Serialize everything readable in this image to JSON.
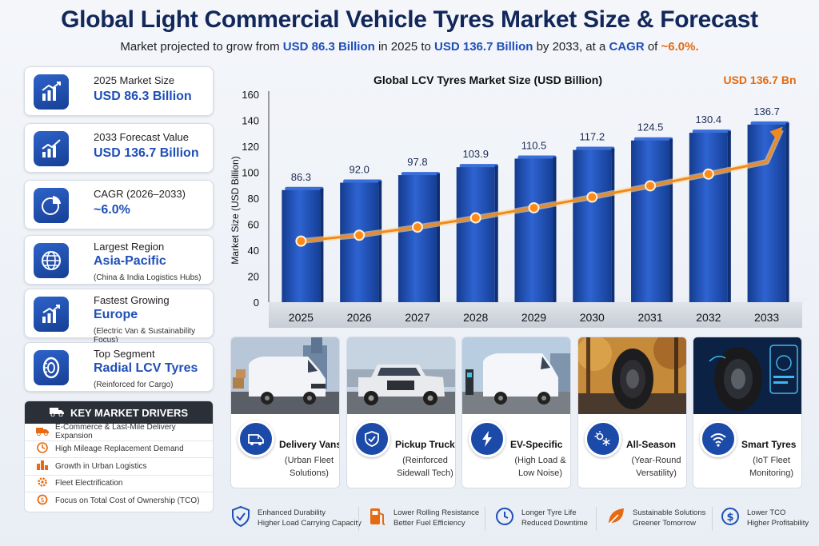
{
  "header": {
    "title": "Global Light Commercial Vehicle Tyres Market Size & Forecast",
    "subtitle_pre": "Market projected to grow from ",
    "subtitle_v1": "USD 86.3 Billion",
    "subtitle_mid": " in 2025 to ",
    "subtitle_v2": "USD 136.7 Billion",
    "subtitle_mid2": " by 2033, at a ",
    "subtitle_cagr_label": "CAGR",
    "subtitle_of": " of ",
    "subtitle_cagr_value": "~6.0%."
  },
  "stats": [
    {
      "label": "2025 Market Size",
      "value": "USD 86.3 Billion",
      "note": "",
      "icon": "bar-chart-icon"
    },
    {
      "label": "2033 Forecast Value",
      "value": "USD 136.7 Billion",
      "note": "",
      "icon": "trend-chart-icon"
    },
    {
      "label": "CAGR (2026–2033)",
      "value": "~6.0%",
      "note": "",
      "icon": "pie-chart-icon"
    },
    {
      "label": "Largest Region",
      "value": "Asia-Pacific",
      "note": "(China & India Logistics Hubs)",
      "icon": "globe-icon"
    },
    {
      "label": "Fastest Growing",
      "value": "Europe",
      "note": "(Electric Van & Sustainability Focus)",
      "icon": "growth-icon"
    },
    {
      "label": "Top Segment",
      "value": "Radial LCV Tyres",
      "note": "(Reinforced for Cargo)",
      "icon": "tyre-icon"
    }
  ],
  "drivers": {
    "title": "KEY MARKET DRIVERS",
    "items": [
      "E-Commerce & Last-Mile Delivery Expansion",
      "High Mileage Replacement Demand",
      "Growth in Urban Logistics",
      "Fleet Electrification",
      "Focus on Total Cost of Ownership (TCO)"
    ]
  },
  "chart_data": {
    "type": "bar",
    "title": "Global LCV Tyres Market Size (USD Billion)",
    "ylabel": "Market Size (USD Billion)",
    "xlabel": "",
    "categories": [
      "2025",
      "2026",
      "2027",
      "2028",
      "2029",
      "2030",
      "2031",
      "2032",
      "2033"
    ],
    "values": [
      86.3,
      92.0,
      97.8,
      103.9,
      110.5,
      117.2,
      124.5,
      130.4,
      136.7
    ],
    "value_labels": [
      "86.3",
      "92.0",
      "97.8",
      "103.9",
      "110.5",
      "117.2",
      "124.5",
      "130.4",
      "136.7"
    ],
    "ylim": [
      0,
      160
    ],
    "yticks": [
      0,
      20,
      40,
      60,
      80,
      100,
      120,
      140,
      160
    ],
    "callout": "USD 136.7 Bn",
    "trend_line": "orange growth arrow",
    "grid": false,
    "bar_color": "#1f4fb8",
    "trend_color": "#f08a1c"
  },
  "segments": [
    {
      "name": "Delivery Vans",
      "desc": "(Urban Fleet Solutions)",
      "icon": "van-icon",
      "photo": "delivery-van-photo"
    },
    {
      "name": "Pickup Trucks",
      "desc": "(Reinforced Sidewall Tech)",
      "icon": "shield-icon",
      "photo": "pickup-truck-photo"
    },
    {
      "name": "EV-Specific",
      "desc": "(High Load & Low Noise)",
      "icon": "lightning-icon",
      "photo": "electric-van-photo"
    },
    {
      "name": "All-Season",
      "desc": "(Year-Round Versatility)",
      "icon": "sun-snow-icon",
      "photo": "all-season-tyre-photo"
    },
    {
      "name": "Smart Tyres",
      "desc": "(IoT Fleet Monitoring)",
      "icon": "wifi-icon",
      "photo": "smart-tyre-photo"
    }
  ],
  "benefits": [
    {
      "l1": "Enhanced Durability",
      "l2": "Higher Load Carrying Capacity",
      "icon": "shield-check-icon"
    },
    {
      "l1": "Lower Rolling Resistance",
      "l2": "Better Fuel Efficiency",
      "icon": "fuel-pump-icon"
    },
    {
      "l1": "Longer Tyre Life",
      "l2": "Reduced Downtime",
      "icon": "clock-icon"
    },
    {
      "l1": "Sustainable Solutions",
      "l2": "Greener Tomorrow",
      "icon": "leaf-icon"
    },
    {
      "l1": "Lower TCO",
      "l2": "Higher Profitability",
      "icon": "dollar-icon"
    }
  ],
  "colors": {
    "primary": "#1f4fb8",
    "accent": "#e66a0f",
    "dark": "#12275a"
  }
}
